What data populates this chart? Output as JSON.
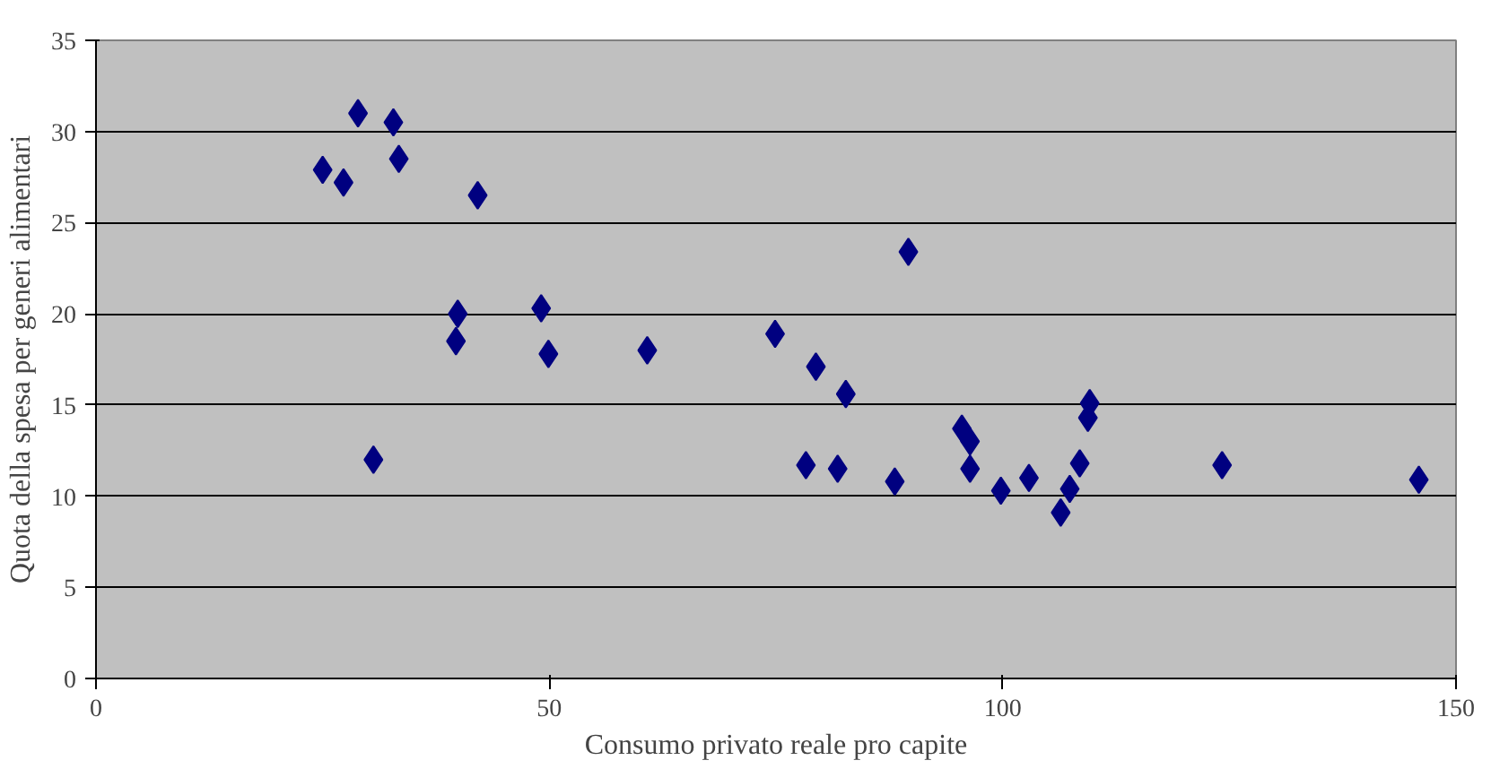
{
  "chart_data": {
    "type": "scatter",
    "xlabel": "Consumo privato reale pro capite",
    "ylabel": "Quota della spesa per generi alimentari",
    "x": [
      25.0,
      27.3,
      28.9,
      30.6,
      32.8,
      33.4,
      42.1,
      39.9,
      39.7,
      49.1,
      49.9,
      60.8,
      74.9,
      79.4,
      78.3,
      81.8,
      82.7,
      88.1,
      89.6,
      95.5,
      96.4,
      96.4,
      99.8,
      102.9,
      106.4,
      107.4,
      108.5,
      109.4,
      109.6,
      124.2,
      145.9
    ],
    "series": [
      {
        "color": "#000080",
        "values": [
          27.9,
          27.2,
          31.0,
          12.0,
          30.5,
          28.5,
          26.5,
          20.0,
          18.5,
          20.3,
          17.8,
          18.0,
          18.9,
          17.1,
          11.7,
          11.5,
          15.6,
          10.8,
          23.4,
          13.7,
          13.0,
          11.5,
          10.3,
          11.0,
          9.1,
          10.4,
          11.8,
          14.3,
          15.1,
          11.7,
          10.9
        ]
      }
    ],
    "marker": "diamond",
    "xlim": [
      0,
      150
    ],
    "ylim": [
      0,
      35
    ],
    "xticks": [
      0,
      50,
      100,
      150
    ],
    "yticks": [
      0,
      5,
      10,
      15,
      20,
      25,
      30,
      35
    ],
    "grid": "y"
  }
}
